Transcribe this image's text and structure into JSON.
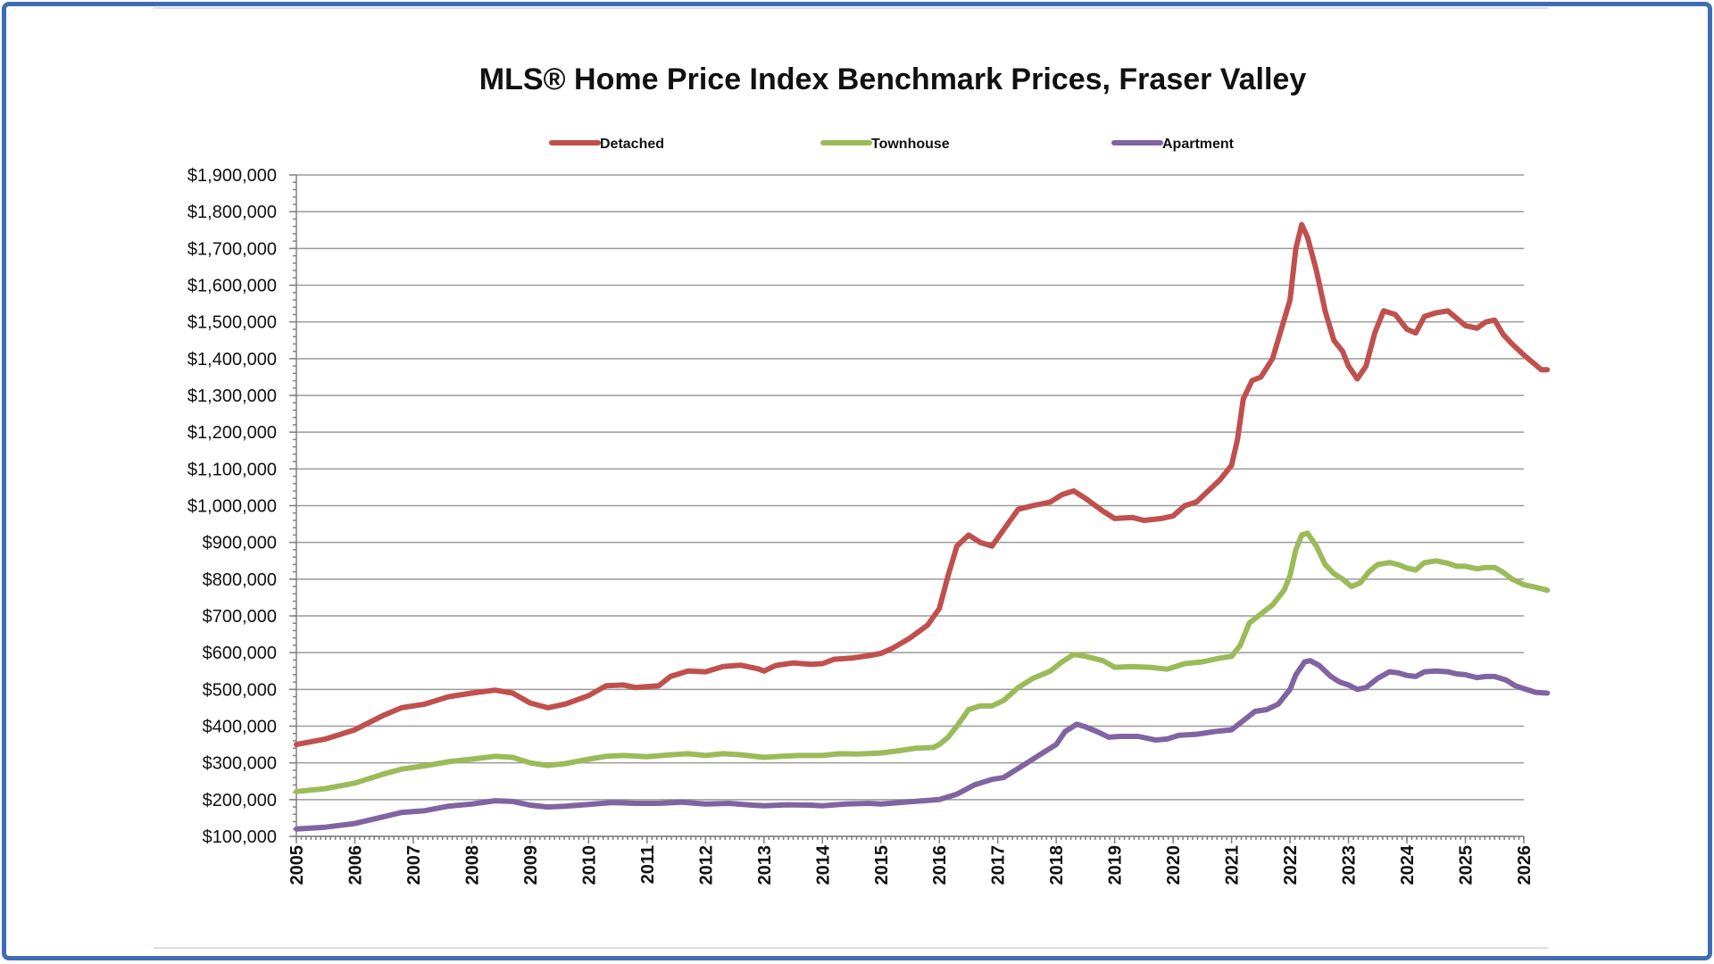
{
  "chart_data": {
    "type": "line",
    "title": "MLS® Home Price Index Benchmark Prices, Fraser Valley",
    "xlabel": "",
    "ylabel": "",
    "ylim": [
      100000,
      1900000
    ],
    "xlim": [
      2005,
      2026
    ],
    "y_ticks": [
      {
        "value": 100000,
        "label": "$100,000"
      },
      {
        "value": 200000,
        "label": "$200,000"
      },
      {
        "value": 300000,
        "label": "$300,000"
      },
      {
        "value": 400000,
        "label": "$400,000"
      },
      {
        "value": 500000,
        "label": "$500,000"
      },
      {
        "value": 600000,
        "label": "$600,000"
      },
      {
        "value": 700000,
        "label": "$700,000"
      },
      {
        "value": 800000,
        "label": "$800,000"
      },
      {
        "value": 900000,
        "label": "$900,000"
      },
      {
        "value": 1000000,
        "label": "$1,000,000"
      },
      {
        "value": 1100000,
        "label": "$1,100,000"
      },
      {
        "value": 1200000,
        "label": "$1,200,000"
      },
      {
        "value": 1300000,
        "label": "$1,300,000"
      },
      {
        "value": 1400000,
        "label": "$1,400,000"
      },
      {
        "value": 1500000,
        "label": "$1,500,000"
      },
      {
        "value": 1600000,
        "label": "$1,600,000"
      },
      {
        "value": 1700000,
        "label": "$1,700,000"
      },
      {
        "value": 1800000,
        "label": "$1,800,000"
      },
      {
        "value": 1900000,
        "label": "$1,900,000"
      }
    ],
    "x_ticks": [
      "2005",
      "2006",
      "2007",
      "2008",
      "2009",
      "2010",
      "2011",
      "2012",
      "2013",
      "2014",
      "2015",
      "2016",
      "2017",
      "2018",
      "2019",
      "2020",
      "2021",
      "2022",
      "2023",
      "2024",
      "2025",
      "2026"
    ],
    "legend_position": "top",
    "series": [
      {
        "name": "Detached",
        "color": "#c0504d",
        "points": [
          [
            2005.0,
            350000
          ],
          [
            2005.5,
            365000
          ],
          [
            2006.0,
            390000
          ],
          [
            2006.5,
            430000
          ],
          [
            2006.8,
            450000
          ],
          [
            2007.2,
            460000
          ],
          [
            2007.6,
            480000
          ],
          [
            2008.0,
            490000
          ],
          [
            2008.4,
            498000
          ],
          [
            2008.7,
            490000
          ],
          [
            2009.0,
            463000
          ],
          [
            2009.3,
            450000
          ],
          [
            2009.6,
            460000
          ],
          [
            2010.0,
            483000
          ],
          [
            2010.3,
            510000
          ],
          [
            2010.6,
            512000
          ],
          [
            2010.8,
            505000
          ],
          [
            2011.2,
            510000
          ],
          [
            2011.4,
            535000
          ],
          [
            2011.7,
            550000
          ],
          [
            2012.0,
            548000
          ],
          [
            2012.3,
            562000
          ],
          [
            2012.6,
            566000
          ],
          [
            2012.9,
            556000
          ],
          [
            2013.0,
            550000
          ],
          [
            2013.2,
            565000
          ],
          [
            2013.5,
            572000
          ],
          [
            2013.8,
            568000
          ],
          [
            2014.0,
            570000
          ],
          [
            2014.2,
            582000
          ],
          [
            2014.5,
            585000
          ],
          [
            2014.8,
            592000
          ],
          [
            2015.0,
            598000
          ],
          [
            2015.2,
            612000
          ],
          [
            2015.5,
            640000
          ],
          [
            2015.8,
            675000
          ],
          [
            2016.0,
            720000
          ],
          [
            2016.15,
            810000
          ],
          [
            2016.3,
            890000
          ],
          [
            2016.5,
            920000
          ],
          [
            2016.7,
            900000
          ],
          [
            2016.9,
            890000
          ],
          [
            2017.1,
            935000
          ],
          [
            2017.35,
            990000
          ],
          [
            2017.6,
            1000000
          ],
          [
            2017.9,
            1010000
          ],
          [
            2018.1,
            1030000
          ],
          [
            2018.3,
            1040000
          ],
          [
            2018.5,
            1020000
          ],
          [
            2018.8,
            985000
          ],
          [
            2019.0,
            965000
          ],
          [
            2019.3,
            968000
          ],
          [
            2019.5,
            960000
          ],
          [
            2019.8,
            965000
          ],
          [
            2020.0,
            972000
          ],
          [
            2020.2,
            1000000
          ],
          [
            2020.4,
            1010000
          ],
          [
            2020.6,
            1040000
          ],
          [
            2020.8,
            1070000
          ],
          [
            2021.0,
            1110000
          ],
          [
            2021.1,
            1180000
          ],
          [
            2021.2,
            1290000
          ],
          [
            2021.35,
            1340000
          ],
          [
            2021.5,
            1350000
          ],
          [
            2021.7,
            1400000
          ],
          [
            2021.85,
            1480000
          ],
          [
            2022.0,
            1560000
          ],
          [
            2022.1,
            1700000
          ],
          [
            2022.2,
            1765000
          ],
          [
            2022.3,
            1730000
          ],
          [
            2022.45,
            1640000
          ],
          [
            2022.6,
            1530000
          ],
          [
            2022.75,
            1450000
          ],
          [
            2022.9,
            1420000
          ],
          [
            2023.0,
            1380000
          ],
          [
            2023.15,
            1345000
          ],
          [
            2023.3,
            1380000
          ],
          [
            2023.45,
            1470000
          ],
          [
            2023.6,
            1530000
          ],
          [
            2023.8,
            1520000
          ],
          [
            2024.0,
            1480000
          ],
          [
            2024.15,
            1470000
          ],
          [
            2024.3,
            1515000
          ],
          [
            2024.5,
            1525000
          ],
          [
            2024.7,
            1530000
          ],
          [
            2024.85,
            1510000
          ],
          [
            2025.0,
            1490000
          ],
          [
            2025.2,
            1483000
          ],
          [
            2025.35,
            1500000
          ],
          [
            2025.5,
            1505000
          ],
          [
            2025.65,
            1465000
          ],
          [
            2025.8,
            1440000
          ],
          [
            2026.0,
            1410000
          ],
          [
            2026.15,
            1390000
          ],
          [
            2026.3,
            1370000
          ],
          [
            2026.4,
            1370000
          ]
        ]
      },
      {
        "name": "Townhouse",
        "color": "#9bbb59",
        "points": [
          [
            2005.0,
            222000
          ],
          [
            2005.5,
            230000
          ],
          [
            2006.0,
            245000
          ],
          [
            2006.5,
            270000
          ],
          [
            2006.8,
            283000
          ],
          [
            2007.2,
            292000
          ],
          [
            2007.6,
            303000
          ],
          [
            2008.0,
            310000
          ],
          [
            2008.4,
            318000
          ],
          [
            2008.7,
            315000
          ],
          [
            2009.0,
            300000
          ],
          [
            2009.3,
            293000
          ],
          [
            2009.6,
            298000
          ],
          [
            2010.0,
            310000
          ],
          [
            2010.3,
            318000
          ],
          [
            2010.6,
            320000
          ],
          [
            2011.0,
            317000
          ],
          [
            2011.4,
            322000
          ],
          [
            2011.7,
            325000
          ],
          [
            2012.0,
            320000
          ],
          [
            2012.3,
            325000
          ],
          [
            2012.6,
            322000
          ],
          [
            2013.0,
            315000
          ],
          [
            2013.3,
            318000
          ],
          [
            2013.6,
            320000
          ],
          [
            2014.0,
            320000
          ],
          [
            2014.3,
            325000
          ],
          [
            2014.6,
            324000
          ],
          [
            2015.0,
            327000
          ],
          [
            2015.3,
            333000
          ],
          [
            2015.6,
            340000
          ],
          [
            2015.9,
            342000
          ],
          [
            2016.0,
            350000
          ],
          [
            2016.15,
            370000
          ],
          [
            2016.3,
            400000
          ],
          [
            2016.5,
            445000
          ],
          [
            2016.7,
            455000
          ],
          [
            2016.9,
            455000
          ],
          [
            2017.1,
            470000
          ],
          [
            2017.35,
            505000
          ],
          [
            2017.6,
            530000
          ],
          [
            2017.9,
            550000
          ],
          [
            2018.1,
            575000
          ],
          [
            2018.3,
            595000
          ],
          [
            2018.5,
            590000
          ],
          [
            2018.8,
            578000
          ],
          [
            2019.0,
            560000
          ],
          [
            2019.3,
            562000
          ],
          [
            2019.6,
            560000
          ],
          [
            2019.9,
            555000
          ],
          [
            2020.0,
            560000
          ],
          [
            2020.2,
            570000
          ],
          [
            2020.5,
            575000
          ],
          [
            2020.8,
            585000
          ],
          [
            2021.0,
            590000
          ],
          [
            2021.15,
            620000
          ],
          [
            2021.3,
            680000
          ],
          [
            2021.5,
            705000
          ],
          [
            2021.7,
            730000
          ],
          [
            2021.9,
            770000
          ],
          [
            2022.0,
            810000
          ],
          [
            2022.1,
            880000
          ],
          [
            2022.2,
            920000
          ],
          [
            2022.3,
            925000
          ],
          [
            2022.45,
            890000
          ],
          [
            2022.6,
            840000
          ],
          [
            2022.75,
            815000
          ],
          [
            2022.9,
            800000
          ],
          [
            2023.05,
            780000
          ],
          [
            2023.2,
            790000
          ],
          [
            2023.35,
            820000
          ],
          [
            2023.5,
            840000
          ],
          [
            2023.7,
            845000
          ],
          [
            2023.85,
            840000
          ],
          [
            2024.0,
            830000
          ],
          [
            2024.15,
            825000
          ],
          [
            2024.3,
            845000
          ],
          [
            2024.5,
            850000
          ],
          [
            2024.7,
            843000
          ],
          [
            2024.85,
            835000
          ],
          [
            2025.0,
            835000
          ],
          [
            2025.2,
            828000
          ],
          [
            2025.35,
            832000
          ],
          [
            2025.5,
            832000
          ],
          [
            2025.65,
            818000
          ],
          [
            2025.8,
            800000
          ],
          [
            2026.0,
            785000
          ],
          [
            2026.2,
            778000
          ],
          [
            2026.4,
            770000
          ]
        ]
      },
      {
        "name": "Apartment",
        "color": "#8064a2",
        "points": [
          [
            2005.0,
            120000
          ],
          [
            2005.5,
            125000
          ],
          [
            2006.0,
            135000
          ],
          [
            2006.4,
            150000
          ],
          [
            2006.8,
            165000
          ],
          [
            2007.2,
            170000
          ],
          [
            2007.6,
            182000
          ],
          [
            2008.0,
            188000
          ],
          [
            2008.4,
            197000
          ],
          [
            2008.7,
            195000
          ],
          [
            2009.0,
            185000
          ],
          [
            2009.3,
            180000
          ],
          [
            2009.6,
            182000
          ],
          [
            2010.0,
            187000
          ],
          [
            2010.4,
            192000
          ],
          [
            2010.8,
            190000
          ],
          [
            2011.2,
            190000
          ],
          [
            2011.6,
            193000
          ],
          [
            2012.0,
            188000
          ],
          [
            2012.4,
            190000
          ],
          [
            2012.8,
            185000
          ],
          [
            2013.0,
            183000
          ],
          [
            2013.4,
            186000
          ],
          [
            2013.8,
            185000
          ],
          [
            2014.0,
            183000
          ],
          [
            2014.4,
            188000
          ],
          [
            2014.8,
            190000
          ],
          [
            2015.0,
            188000
          ],
          [
            2015.4,
            193000
          ],
          [
            2015.8,
            198000
          ],
          [
            2016.0,
            200000
          ],
          [
            2016.3,
            215000
          ],
          [
            2016.6,
            240000
          ],
          [
            2016.9,
            255000
          ],
          [
            2017.1,
            260000
          ],
          [
            2017.4,
            290000
          ],
          [
            2017.7,
            320000
          ],
          [
            2018.0,
            350000
          ],
          [
            2018.15,
            385000
          ],
          [
            2018.35,
            405000
          ],
          [
            2018.5,
            398000
          ],
          [
            2018.7,
            385000
          ],
          [
            2018.9,
            370000
          ],
          [
            2019.1,
            372000
          ],
          [
            2019.4,
            372000
          ],
          [
            2019.7,
            362000
          ],
          [
            2019.9,
            365000
          ],
          [
            2020.1,
            375000
          ],
          [
            2020.4,
            378000
          ],
          [
            2020.7,
            385000
          ],
          [
            2021.0,
            390000
          ],
          [
            2021.2,
            415000
          ],
          [
            2021.4,
            440000
          ],
          [
            2021.6,
            445000
          ],
          [
            2021.8,
            460000
          ],
          [
            2022.0,
            500000
          ],
          [
            2022.1,
            540000
          ],
          [
            2022.25,
            575000
          ],
          [
            2022.35,
            578000
          ],
          [
            2022.5,
            565000
          ],
          [
            2022.7,
            535000
          ],
          [
            2022.85,
            520000
          ],
          [
            2023.0,
            512000
          ],
          [
            2023.15,
            500000
          ],
          [
            2023.3,
            505000
          ],
          [
            2023.5,
            530000
          ],
          [
            2023.7,
            548000
          ],
          [
            2023.85,
            545000
          ],
          [
            2024.0,
            538000
          ],
          [
            2024.15,
            535000
          ],
          [
            2024.3,
            548000
          ],
          [
            2024.5,
            550000
          ],
          [
            2024.7,
            548000
          ],
          [
            2024.85,
            542000
          ],
          [
            2025.0,
            540000
          ],
          [
            2025.2,
            532000
          ],
          [
            2025.35,
            535000
          ],
          [
            2025.5,
            535000
          ],
          [
            2025.7,
            525000
          ],
          [
            2025.85,
            510000
          ],
          [
            2026.0,
            502000
          ],
          [
            2026.2,
            492000
          ],
          [
            2026.4,
            490000
          ]
        ]
      }
    ]
  }
}
